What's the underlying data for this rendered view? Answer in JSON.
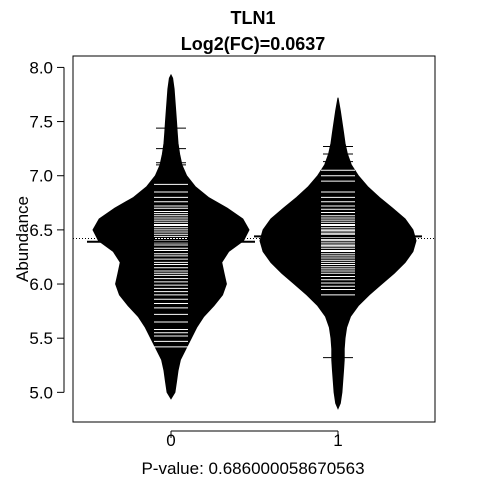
{
  "chart_data": {
    "type": "beanplot",
    "title": "TLN1",
    "subtitle": "Log2(FC)=0.0637",
    "xlabel": "P-value: 0.686000058670563",
    "ylabel": "Abundance",
    "categories": [
      "0",
      "1"
    ],
    "ylim": [
      4.8,
      8.05
    ],
    "yticks": [
      "5.0",
      "5.5",
      "6.0",
      "6.5",
      "7.0",
      "7.5",
      "8.0"
    ],
    "overall_mean": 6.42,
    "grid": false,
    "legend": "none",
    "colors": {
      "bean_fill": "#000000",
      "strip_line": "#ffffff",
      "mean_line": "#000000",
      "background": "#ffffff"
    },
    "series": [
      {
        "category": "0",
        "mean": 6.39,
        "density": [
          [
            4.94,
            0.0
          ],
          [
            5.0,
            0.05
          ],
          [
            5.1,
            0.07
          ],
          [
            5.2,
            0.09
          ],
          [
            5.3,
            0.12
          ],
          [
            5.4,
            0.19
          ],
          [
            5.5,
            0.26
          ],
          [
            5.6,
            0.33
          ],
          [
            5.7,
            0.42
          ],
          [
            5.8,
            0.55
          ],
          [
            5.9,
            0.66
          ],
          [
            6.0,
            0.71
          ],
          [
            6.1,
            0.68
          ],
          [
            6.2,
            0.65
          ],
          [
            6.3,
            0.74
          ],
          [
            6.4,
            0.93
          ],
          [
            6.5,
            1.0
          ],
          [
            6.6,
            0.92
          ],
          [
            6.7,
            0.72
          ],
          [
            6.8,
            0.48
          ],
          [
            6.9,
            0.31
          ],
          [
            7.0,
            0.2
          ],
          [
            7.1,
            0.14
          ],
          [
            7.2,
            0.11
          ],
          [
            7.3,
            0.09
          ],
          [
            7.4,
            0.08
          ],
          [
            7.5,
            0.07
          ],
          [
            7.6,
            0.06
          ],
          [
            7.7,
            0.05
          ],
          [
            7.8,
            0.04
          ],
          [
            7.9,
            0.02
          ],
          [
            7.93,
            0.0
          ]
        ],
        "points": [
          5.42,
          5.47,
          5.52,
          5.55,
          5.58,
          5.65,
          5.72,
          5.78,
          5.82,
          5.86,
          5.9,
          5.93,
          5.96,
          5.99,
          6.02,
          6.05,
          6.08,
          6.1,
          6.12,
          6.15,
          6.18,
          6.2,
          6.23,
          6.26,
          6.28,
          6.31,
          6.33,
          6.36,
          6.38,
          6.4,
          6.42,
          6.44,
          6.46,
          6.48,
          6.5,
          6.52,
          6.54,
          6.55,
          6.57,
          6.59,
          6.61,
          6.63,
          6.65,
          6.67,
          6.7,
          6.72,
          6.76,
          6.8,
          6.85,
          6.92,
          7.0,
          7.1,
          7.12,
          7.25,
          7.44
        ]
      },
      {
        "category": "1",
        "mean": 6.44,
        "density": [
          [
            4.85,
            0.0
          ],
          [
            4.9,
            0.03
          ],
          [
            5.0,
            0.05
          ],
          [
            5.1,
            0.06
          ],
          [
            5.2,
            0.07
          ],
          [
            5.3,
            0.08
          ],
          [
            5.4,
            0.08
          ],
          [
            5.5,
            0.09
          ],
          [
            5.6,
            0.11
          ],
          [
            5.7,
            0.16
          ],
          [
            5.8,
            0.26
          ],
          [
            5.9,
            0.4
          ],
          [
            6.0,
            0.56
          ],
          [
            6.1,
            0.72
          ],
          [
            6.2,
            0.86
          ],
          [
            6.3,
            0.96
          ],
          [
            6.4,
            1.0
          ],
          [
            6.5,
            0.96
          ],
          [
            6.6,
            0.86
          ],
          [
            6.7,
            0.7
          ],
          [
            6.8,
            0.53
          ],
          [
            6.9,
            0.38
          ],
          [
            7.0,
            0.26
          ],
          [
            7.1,
            0.17
          ],
          [
            7.2,
            0.12
          ],
          [
            7.3,
            0.09
          ],
          [
            7.4,
            0.07
          ],
          [
            7.5,
            0.05
          ],
          [
            7.6,
            0.03
          ],
          [
            7.72,
            0.0
          ]
        ],
        "points": [
          5.32,
          5.9,
          5.95,
          5.98,
          6.01,
          6.04,
          6.07,
          6.1,
          6.12,
          6.14,
          6.16,
          6.18,
          6.2,
          6.22,
          6.24,
          6.26,
          6.28,
          6.3,
          6.31,
          6.33,
          6.35,
          6.36,
          6.38,
          6.4,
          6.41,
          6.43,
          6.44,
          6.46,
          6.47,
          6.49,
          6.5,
          6.52,
          6.54,
          6.55,
          6.57,
          6.59,
          6.61,
          6.63,
          6.66,
          6.69,
          6.72,
          6.76,
          6.8,
          6.85,
          6.95,
          7.0,
          7.05,
          7.13,
          7.2,
          7.27
        ]
      }
    ]
  }
}
